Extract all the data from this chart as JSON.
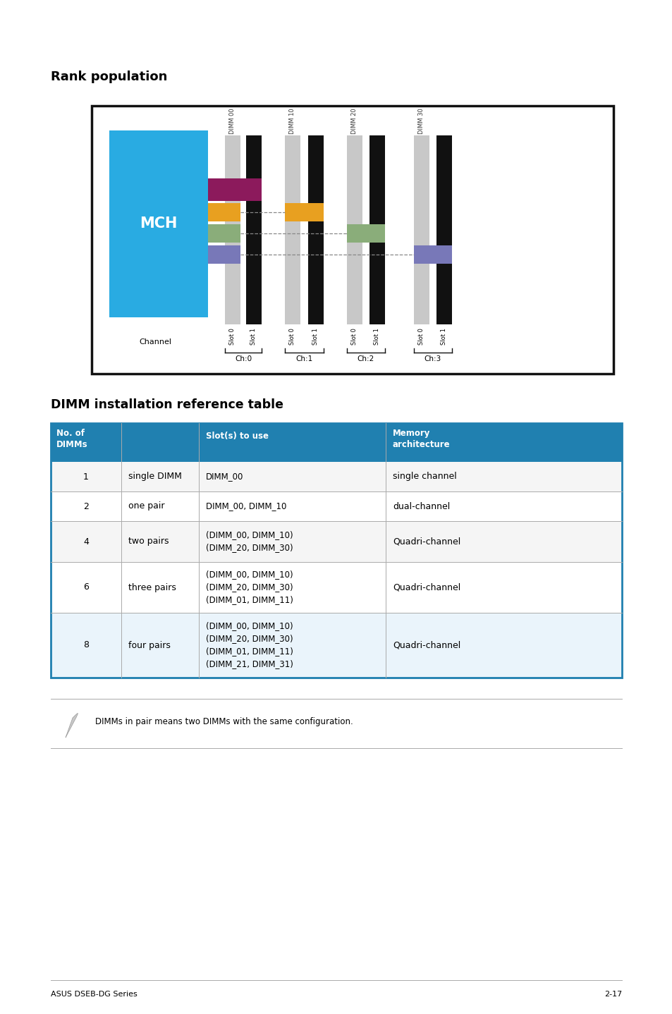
{
  "page_bg": "#ffffff",
  "title1": "Rank population",
  "title2": "DIMM installation reference table",
  "mch_color": "#29abe2",
  "mch_text": "MCH",
  "dimm_labels": [
    "DIMM 00",
    "DIMM 01",
    "DIMM 10",
    "DIMM 11",
    "DIMM 20",
    "DIMM 21",
    "DIMM 30",
    "DIMM 31"
  ],
  "dimm_colors": [
    "#c8c8c8",
    "#111111",
    "#c8c8c8",
    "#111111",
    "#c8c8c8",
    "#111111",
    "#c8c8c8",
    "#111111"
  ],
  "slot_labels": [
    "Slot 0",
    "Slot 1",
    "Slot 0",
    "Slot 1",
    "Slot 0",
    "Slot 1",
    "Slot 0",
    "Slot 1"
  ],
  "channel_labels": [
    "Ch:0",
    "Ch:1",
    "Ch:2",
    "Ch:3"
  ],
  "header_color": "#2080b0",
  "header_text_color": "#ffffff",
  "table_border_color": "#2080b0",
  "row_sep_color": "#aaaaaa",
  "col_sep_color": "#2080b0",
  "table_rows": [
    {
      "num": "1",
      "type": "single DIMM",
      "slots": "DIMM_00",
      "arch": "single channel"
    },
    {
      "num": "2",
      "type": "one pair",
      "slots": "DIMM_00, DIMM_10",
      "arch": "dual-channel"
    },
    {
      "num": "4",
      "type": "two pairs",
      "slots": "(DIMM_00, DIMM_10)\n(DIMM_20, DIMM_30)",
      "arch": "Quadri-channel"
    },
    {
      "num": "6",
      "type": "three pairs",
      "slots": "(DIMM_00, DIMM_10)\n(DIMM_20, DIMM_30)\n(DIMM_01, DIMM_11)",
      "arch": "Quadri-channel"
    },
    {
      "num": "8",
      "type": "four pairs",
      "slots": "(DIMM_00, DIMM_10)\n(DIMM_20, DIMM_30)\n(DIMM_01, DIMM_11)\n(DIMM_21, DIMM_31)",
      "arch": "Quadri-channel"
    }
  ],
  "note_text": "DIMMs in pair means two DIMMs with the same configuration.",
  "footer_left": "ASUS DSEB-DG Series",
  "footer_right": "2-17"
}
